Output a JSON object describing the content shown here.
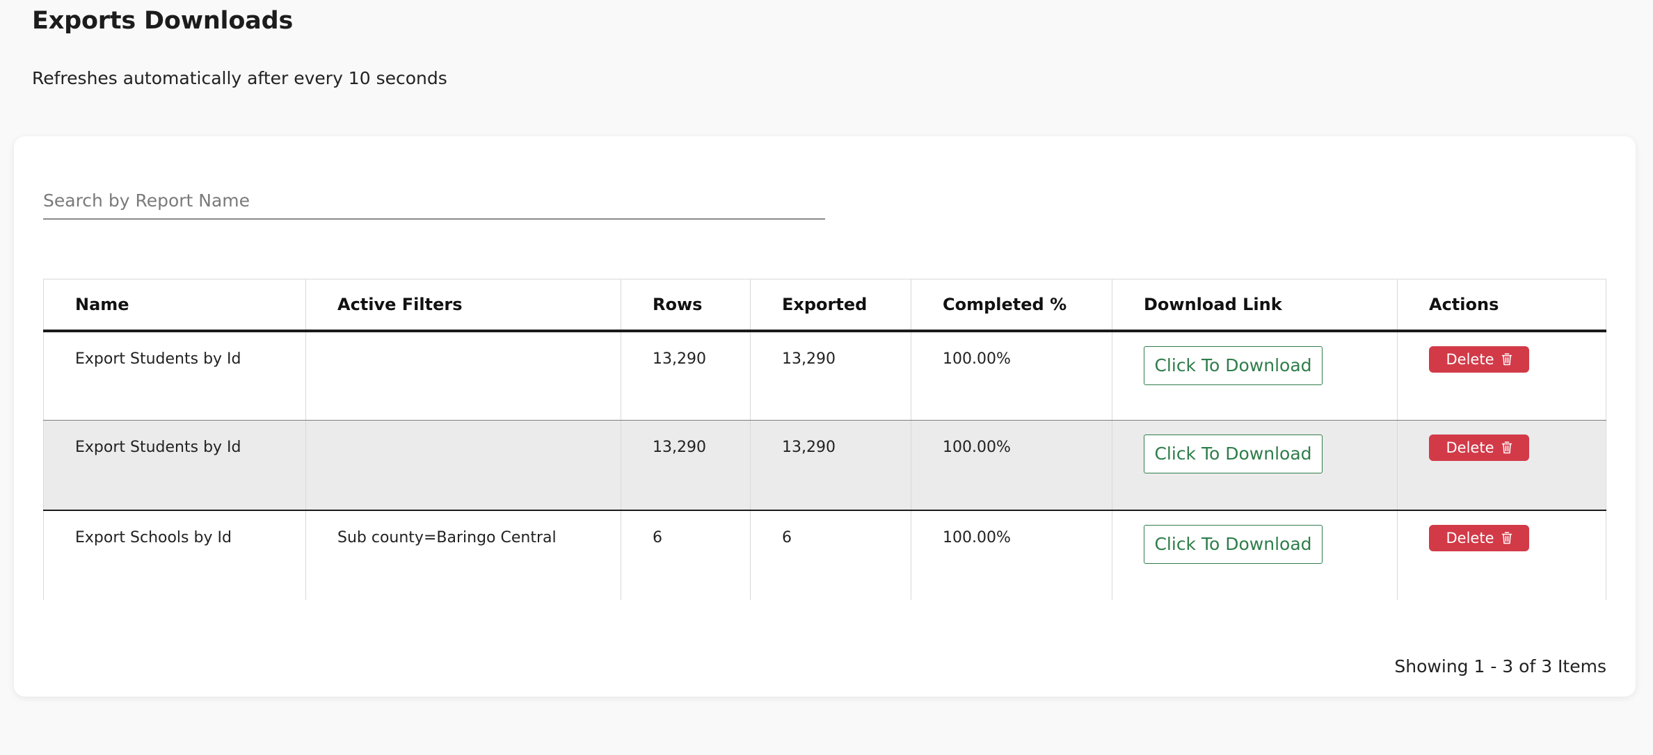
{
  "header": {
    "title": "Exports Downloads",
    "subtitle": "Refreshes automatically after every 10 seconds"
  },
  "search": {
    "placeholder": "Search by Report Name",
    "value": ""
  },
  "table": {
    "columns": [
      "Name",
      "Active Filters",
      "Rows",
      "Exported",
      "Completed %",
      "Download Link",
      "Actions"
    ],
    "rows": [
      {
        "name": "Export Students by Id",
        "filters": "",
        "rows": "13,290",
        "exported": "13,290",
        "completed": "100.00%",
        "download_label": "Click To Download",
        "delete_label": "Delete"
      },
      {
        "name": "Export Students by Id",
        "filters": "",
        "rows": "13,290",
        "exported": "13,290",
        "completed": "100.00%",
        "download_label": "Click To Download",
        "delete_label": "Delete"
      },
      {
        "name": "Export Schools by Id",
        "filters": "Sub county=Baringo Central",
        "rows": "6",
        "exported": "6",
        "completed": "100.00%",
        "download_label": "Click To Download",
        "delete_label": "Delete"
      }
    ]
  },
  "pagination": {
    "summary": "Showing 1 - 3 of 3 Items"
  },
  "colors": {
    "background": "#f9f9f9",
    "download_green": "#2e7d4a",
    "delete_red": "#d23a48",
    "alt_row": "#ebebeb"
  },
  "icons": {
    "delete": "trash-icon"
  }
}
